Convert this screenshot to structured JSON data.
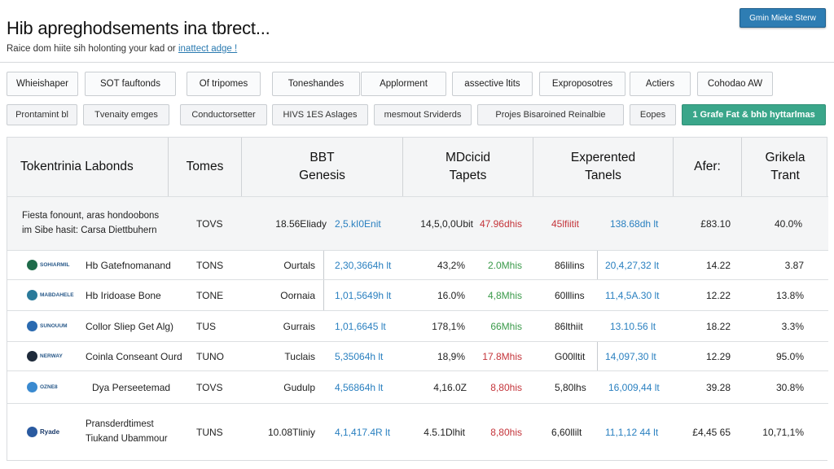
{
  "header": {
    "title": "Hib apreghodsements ina tbrect...",
    "subtitle_text": "Raice dom hiite sih holonting your kad or",
    "subtitle_link": "inattect adge !",
    "top_button": "Gmin Mieke Sterw"
  },
  "tabs": [
    "Whieishaper",
    "SOT fauftonds",
    "Of tripomes",
    "Toneshandes",
    "Applorment",
    "assective ltits",
    "Exproposotres",
    "Actiers",
    "Cohodao AW"
  ],
  "filters": [
    "Prontamint bl",
    "Tvenaity emges",
    "Conductorsetter",
    "HIVS 1ES Aslages",
    "mesmout Srviderds",
    "Projes Bisaroined Reinalbie",
    "Eopes",
    "1 Grafe Fat & bhb hyttarlmas"
  ],
  "table": {
    "headers": {
      "col1": "Tokentrinia Labonds",
      "col2": "Tomes",
      "col3a": "BBT",
      "col3b": "Genesis",
      "col4a": "MDcicid",
      "col4b": "Tapets",
      "col5a": "Experented",
      "col5b": "Tanels",
      "col6": "Afer:",
      "col7a": "Grikela",
      "col7b": "Trant"
    },
    "rows": [
      {
        "logo": "",
        "name1": "Fiesta fonount, aras hondoobons",
        "name2": "im Sibe hasit:  Carsa Diettbuhern",
        "token": "TOVS",
        "genesis": "18.56Eliady",
        "gval": "2,5.kI0Enit",
        "tapets": "14,5,0,0Ubit",
        "tval": "47.96dhis",
        "exp": "45lfiitit",
        "eval": "138.68dh lt",
        "after": "£83.10",
        "trant": "40.0%"
      },
      {
        "logo": "SOHIARMIL",
        "name1": "Hb Gatefnomanand",
        "name2": "",
        "token": "TONS",
        "genesis": "Ourtals",
        "gval": "2,30,3664h lt",
        "tapets": "43,2%",
        "tval": "2.0Mhis",
        "exp": "86lilins",
        "eval": "20,4,27,32 lt",
        "after": "14.22",
        "trant": "3.87"
      },
      {
        "logo": "MABDAHELE",
        "name1": "Hb Iridoase Bone",
        "name2": "",
        "token": "TONE",
        "genesis": "Oornaia",
        "gval": "1,01,5649h lt",
        "tapets": "16.0%",
        "tval": "4,8Mhis",
        "exp": "60lllins",
        "eval": "11,4,5A.30 lt",
        "after": "12.22",
        "trant": "13.8%"
      },
      {
        "logo": "SUNOUUM",
        "name1": "Collor Sliep Get Alg)",
        "name2": "",
        "token": "TUS",
        "genesis": "Gurrais",
        "gval": "1,01,6645 lt",
        "tapets": "178,1%",
        "tval": "66Mhis",
        "exp": "86lthiit",
        "eval": "13.10.56 lt",
        "after": "18.22",
        "trant": "3.3%"
      },
      {
        "logo": "NERWAY",
        "name1": "Coinla Conseant Ourd",
        "name2": "",
        "token": "TUNO",
        "genesis": "Tuclais",
        "gval": "5,35064h lt",
        "tapets": "18,9%",
        "tval": "17.8Mhis",
        "exp": "G00lltit",
        "eval": "14,097,30 lt",
        "after": "12.29",
        "trant": "95.0%"
      },
      {
        "logo": "OZNE8",
        "name1": "Dya Perseetemad",
        "name2": "",
        "token": "TOVS",
        "genesis": "Gudulp",
        "gval": "4,56864h lt",
        "tapets": "4,16.0Z",
        "tval": "8,80his",
        "exp": "5,80lhs",
        "eval": "16,009,44 lt",
        "after": "39.28",
        "trant": "30.8%"
      },
      {
        "logo": "Ryade",
        "name1": "Pransderdtimest",
        "name2": "Tiukand Ubammour",
        "token": "TUNS",
        "genesis": "10.08Tliniy",
        "gval": "4,1,417.4R lt",
        "tapets": "4.5.1Dlhit",
        "tval": "8,80his",
        "exp": "6,60llilt",
        "eval": "11,1,12 44 lt",
        "after": "£4,45 65",
        "trant": "10,71,1%"
      }
    ]
  },
  "colors": {
    "accent": "#2e7db3",
    "positive": "#3aa68a",
    "blue_val": "#2a80c0",
    "green_val": "#3a9a4a",
    "red_val": "#c4343a"
  },
  "icons": [
    "sohiarmil-logo-icon",
    "mabdahele-logo-icon",
    "sunouum-logo-icon",
    "nerway-logo-icon",
    "ozne8-logo-icon",
    "ryade-logo-icon"
  ]
}
